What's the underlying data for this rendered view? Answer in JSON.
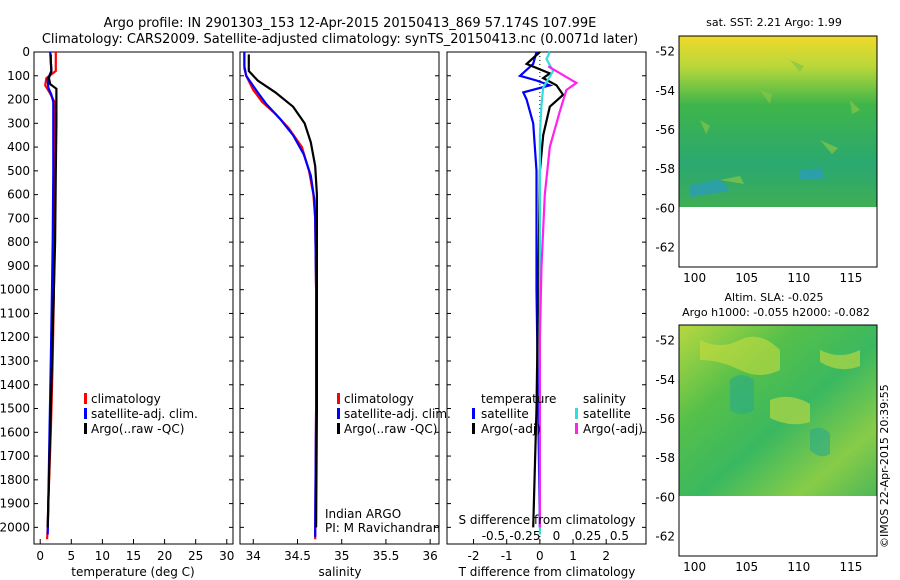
{
  "header": {
    "line1": "Argo profile: IN 2901303_153 12-Apr-2015 20150413_869 57.174S 107.99E",
    "line2": "Climatology: CARS2009. Satellite-adjusted climatology: synTS_20150413.nc (0.0071d later)"
  },
  "colors": {
    "red": "#ff0000",
    "blue": "#0000ff",
    "black": "#000000",
    "cyan": "#33dddd",
    "magenta": "#ff22ee"
  },
  "chart_data": [
    {
      "type": "line",
      "name": "temperature-profile",
      "xlabel": "temperature (deg C)",
      "ylabel": "",
      "xlim": [
        -1,
        31
      ],
      "ylim": [
        2070,
        0
      ],
      "xticks": [
        0,
        5,
        10,
        15,
        20,
        25,
        30
      ],
      "yticks": [
        0,
        100,
        200,
        300,
        400,
        500,
        600,
        700,
        800,
        900,
        1000,
        1100,
        1200,
        1300,
        1400,
        1500,
        1600,
        1700,
        1800,
        1900,
        2000
      ],
      "legend": [
        "climatology",
        "satellite-adj. clim.",
        "Argo(..raw -QC)"
      ],
      "series": [
        {
          "name": "climatology",
          "color": "#ff0000",
          "points": [
            [
              2.5,
              0
            ],
            [
              2.5,
              40
            ],
            [
              2.5,
              80
            ],
            [
              1.0,
              110
            ],
            [
              0.8,
              140
            ],
            [
              1.5,
              170
            ],
            [
              2.3,
              210
            ],
            [
              2.3,
              300
            ],
            [
              2.3,
              500
            ],
            [
              2.3,
              800
            ],
            [
              2.2,
              1000
            ],
            [
              2.0,
              1300
            ],
            [
              1.7,
              1600
            ],
            [
              1.3,
              1900
            ],
            [
              1.2,
              2000
            ],
            [
              1.1,
              2050
            ]
          ]
        },
        {
          "name": "satellite-adj. clim.",
          "color": "#0000ff",
          "points": [
            [
              1.6,
              0
            ],
            [
              1.7,
              40
            ],
            [
              1.8,
              80
            ],
            [
              1.2,
              115
            ],
            [
              1.3,
              150
            ],
            [
              1.8,
              180
            ],
            [
              2.1,
              210
            ],
            [
              2.1,
              300
            ],
            [
              2.1,
              500
            ],
            [
              2.0,
              800
            ],
            [
              1.9,
              1000
            ],
            [
              1.7,
              1300
            ],
            [
              1.5,
              1600
            ],
            [
              1.3,
              1900
            ],
            [
              1.2,
              2030
            ]
          ]
        },
        {
          "name": "Argo(..raw -QC)",
          "color": "#000000",
          "points": [
            [
              1.7,
              10
            ],
            [
              1.7,
              40
            ],
            [
              1.8,
              80
            ],
            [
              1.4,
              110
            ],
            [
              1.6,
              135
            ],
            [
              2.6,
              155
            ],
            [
              2.6,
              200
            ],
            [
              2.6,
              300
            ],
            [
              2.5,
              500
            ],
            [
              2.4,
              800
            ],
            [
              2.2,
              1000
            ],
            [
              1.9,
              1300
            ],
            [
              1.6,
              1600
            ],
            [
              1.3,
              1900
            ],
            [
              1.2,
              2000
            ]
          ]
        }
      ]
    },
    {
      "type": "line",
      "name": "salinity-profile",
      "xlabel": "salinity",
      "ylabel": "",
      "xlim": [
        33.85,
        36.1
      ],
      "ylim": [
        2070,
        0
      ],
      "xticks": [
        34,
        34.5,
        35,
        35.5,
        36
      ],
      "legend": [
        "climatology",
        "satellite-adj. clim.",
        "Argo(..raw -QC)"
      ],
      "series": [
        {
          "name": "climatology",
          "color": "#ff0000",
          "points": [
            [
              33.9,
              0
            ],
            [
              33.9,
              70
            ],
            [
              33.92,
              100
            ],
            [
              34.0,
              160
            ],
            [
              34.1,
              210
            ],
            [
              34.25,
              260
            ],
            [
              34.4,
              320
            ],
            [
              34.55,
              400
            ],
            [
              34.63,
              500
            ],
            [
              34.68,
              600
            ],
            [
              34.7,
              700
            ],
            [
              34.71,
              1000
            ],
            [
              34.71,
              1500
            ],
            [
              34.7,
              2000
            ],
            [
              34.7,
              2050
            ]
          ]
        },
        {
          "name": "satellite-adj. clim.",
          "color": "#0000ff",
          "points": [
            [
              33.9,
              0
            ],
            [
              33.9,
              60
            ],
            [
              33.92,
              100
            ],
            [
              34.05,
              170
            ],
            [
              34.15,
              220
            ],
            [
              34.3,
              280
            ],
            [
              34.45,
              350
            ],
            [
              34.57,
              430
            ],
            [
              34.65,
              520
            ],
            [
              34.69,
              620
            ],
            [
              34.7,
              700
            ],
            [
              34.71,
              1000
            ],
            [
              34.71,
              1500
            ],
            [
              34.7,
              2000
            ],
            [
              34.7,
              2040
            ]
          ]
        },
        {
          "name": "Argo(..raw -QC)",
          "color": "#000000",
          "points": [
            [
              33.95,
              10
            ],
            [
              33.95,
              80
            ],
            [
              34.05,
              120
            ],
            [
              34.25,
              170
            ],
            [
              34.45,
              230
            ],
            [
              34.58,
              300
            ],
            [
              34.65,
              380
            ],
            [
              34.7,
              480
            ],
            [
              34.72,
              600
            ],
            [
              34.72,
              800
            ],
            [
              34.72,
              1000
            ],
            [
              34.72,
              1500
            ],
            [
              34.71,
              2000
            ]
          ]
        }
      ],
      "annotation": [
        "Indian ARGO",
        "PI: M Ravichandran"
      ]
    },
    {
      "type": "line",
      "name": "difference-profile",
      "xlabel": "T difference from climatology",
      "xlabel_top": "S difference from climatology",
      "xlim": [
        -2.8,
        3.2
      ],
      "ylim": [
        2070,
        0
      ],
      "xticks": [
        -2,
        -1,
        0,
        1,
        2
      ],
      "xticks_top": [
        -0.5,
        -0.25,
        0,
        0.25,
        0.5
      ],
      "legend_headers": [
        "temperature",
        "salinity"
      ],
      "legend": [
        "satellite",
        "Argo(-adj)",
        "satellite",
        "Argo(-adj)"
      ],
      "series": [
        {
          "name": "T satellite",
          "color": "#0000ff",
          "points": [
            [
              -0.1,
              0
            ],
            [
              -0.2,
              50
            ],
            [
              -0.6,
              100
            ],
            [
              -0.1,
              120
            ],
            [
              0.3,
              140
            ],
            [
              -0.5,
              170
            ],
            [
              -0.4,
              200
            ],
            [
              -0.2,
              300
            ],
            [
              -0.1,
              500
            ],
            [
              -0.1,
              1000
            ],
            [
              -0.05,
              1500
            ],
            [
              0,
              2000
            ]
          ]
        },
        {
          "name": "T Argo(-adj)",
          "color": "#000000",
          "points": [
            [
              0,
              0
            ],
            [
              -0.4,
              50
            ],
            [
              0.3,
              90
            ],
            [
              0.1,
              110
            ],
            [
              0.5,
              140
            ],
            [
              0.7,
              180
            ],
            [
              0.3,
              230
            ],
            [
              0.1,
              350
            ],
            [
              0,
              500
            ],
            [
              -0.05,
              1000
            ],
            [
              -0.1,
              1500
            ],
            [
              -0.2,
              2000
            ]
          ]
        },
        {
          "name": "S satellite",
          "color": "#33dddd",
          "points": [
            [
              0.3,
              0
            ],
            [
              0.2,
              30
            ],
            [
              0.4,
              80
            ],
            [
              0.1,
              150
            ],
            [
              0.05,
              220
            ],
            [
              0,
              350
            ],
            [
              0,
              1000
            ],
            [
              0,
              2030
            ]
          ]
        },
        {
          "name": "S Argo(-adj)",
          "color": "#ff22ee",
          "points": [
            [
              0.25,
              60
            ],
            [
              1.1,
              130
            ],
            [
              0.8,
              160
            ],
            [
              0.6,
              250
            ],
            [
              0.3,
              400
            ],
            [
              0.15,
              600
            ],
            [
              0.05,
              900
            ],
            [
              0,
              1200
            ],
            [
              0,
              2000
            ]
          ]
        }
      ]
    },
    {
      "type": "heatmap",
      "name": "sst-map",
      "title": "sat. SST: 2.21 Argo: 1.99",
      "xticks": [
        100,
        105,
        110,
        115
      ],
      "yticks": [
        -52,
        -54,
        -56,
        -58,
        -60,
        -62
      ]
    },
    {
      "type": "heatmap",
      "name": "sla-map",
      "title": [
        "Altim. SLA: -0.025",
        "Argo h1000: -0.055 h2000: -0.082"
      ],
      "xticks": [
        100,
        105,
        110,
        115
      ],
      "yticks": [
        -52,
        -54,
        -56,
        -58,
        -60,
        -62
      ]
    }
  ],
  "footer": {
    "stamp": "©IMOS 22-Apr-2015 20:39:55"
  }
}
